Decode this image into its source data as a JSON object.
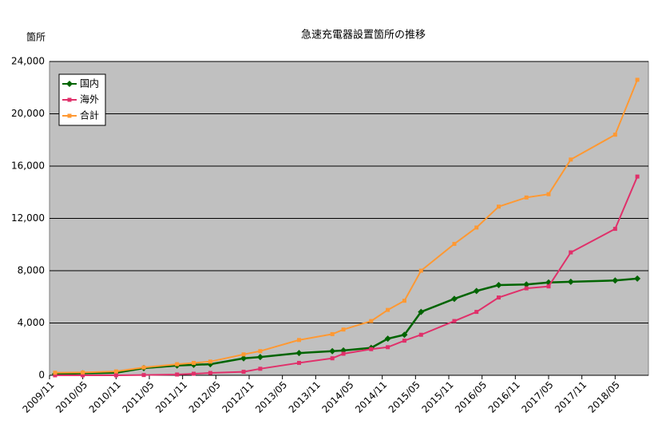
{
  "chart_data": {
    "type": "line",
    "title": "急速充電器設置箇所の推移",
    "y_label": "箇所",
    "x": [
      "2009/12",
      "2010/05",
      "2010/11",
      "2011/04",
      "2011/10",
      "2012/01",
      "2012/04",
      "2012/10",
      "2013/01",
      "2013/08",
      "2014/02",
      "2014/04",
      "2014/09",
      "2014/12",
      "2015/03",
      "2015/06",
      "2015/12",
      "2016/04",
      "2016/08",
      "2017/01",
      "2017/05",
      "2017/09",
      "2018/05",
      "2018/09"
    ],
    "series": [
      {
        "name": "国内",
        "color": "#006400",
        "marker": "diamond",
        "values": [
          100,
          150,
          200,
          550,
          750,
          800,
          850,
          1300,
          1400,
          1700,
          1850,
          1900,
          2100,
          2800,
          3100,
          4850,
          5850,
          6450,
          6900,
          6950,
          7100,
          7150,
          7250,
          7400
        ]
      },
      {
        "name": "海外",
        "color": "#e0306a",
        "marker": "square",
        "values": [
          0,
          0,
          0,
          20,
          60,
          120,
          180,
          270,
          500,
          950,
          1300,
          1650,
          2000,
          2150,
          2650,
          3100,
          4150,
          4850,
          5950,
          6650,
          6800,
          9400,
          11200,
          15200
        ]
      },
      {
        "name": "合計",
        "color": "#ff9933",
        "marker": "square",
        "values": [
          200,
          220,
          300,
          600,
          850,
          950,
          1050,
          1600,
          1850,
          2700,
          3150,
          3500,
          4150,
          5000,
          5700,
          8000,
          10050,
          11300,
          12900,
          13600,
          13850,
          16500,
          18400,
          22600
        ]
      }
    ],
    "xlim": [
      "2009/11",
      "2018/11"
    ],
    "xticks": [
      "2009/11",
      "2010/05",
      "2010/11",
      "2011/05",
      "2011/11",
      "2012/05",
      "2012/11",
      "2013/05",
      "2013/11",
      "2014/05",
      "2014/11",
      "2015/05",
      "2015/11",
      "2016/05",
      "2016/11",
      "2017/05",
      "2017/11",
      "2018/05"
    ],
    "ylim": [
      0,
      24000
    ],
    "yticks": [
      0,
      {
        "value": 4000,
        "label": "4,000"
      },
      {
        "value": 8000,
        "label": "8,000"
      },
      {
        "value": 12000,
        "label": "12,000"
      },
      {
        "value": 16000,
        "label": "16,000"
      },
      {
        "value": 20000,
        "label": "20,000"
      },
      {
        "value": 24000,
        "label": "24,000"
      }
    ],
    "grid": true,
    "legend": "top-left"
  }
}
